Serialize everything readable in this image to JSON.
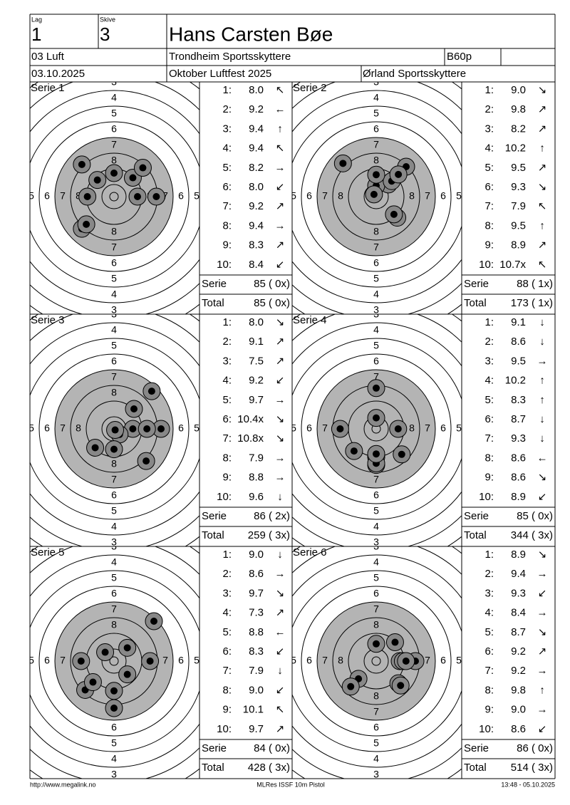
{
  "header": {
    "lag_label": "Lag",
    "lag": "1",
    "skive_label": "Skive",
    "skive": "3",
    "name": "Hans Carsten Bøe",
    "class": "03 Luft",
    "club": "Trondheim Sportsskyttere",
    "code": "B60p",
    "date": "03.10.2025",
    "event": "Oktober Luftfest 2025",
    "organizer": "Ørland Sportsskyttere"
  },
  "target": {
    "ring_labels": [
      3,
      4,
      5,
      6,
      7,
      8
    ]
  },
  "labels": {
    "shot_numbers": [
      "1:",
      "2:",
      "3:",
      "4:",
      "5:",
      "6:",
      "7:",
      "8:",
      "9:",
      "10:"
    ],
    "serie": "Serie",
    "total": "Total"
  },
  "series": [
    {
      "title": "Serie 1",
      "shots": [
        {
          "score": "8.0",
          "dir": "nw"
        },
        {
          "score": "9.2",
          "dir": "w"
        },
        {
          "score": "9.4",
          "dir": "n"
        },
        {
          "score": "9.4",
          "dir": "nw"
        },
        {
          "score": "8.2",
          "dir": "e"
        },
        {
          "score": "8.0",
          "dir": "sw"
        },
        {
          "score": "9.2",
          "dir": "ne"
        },
        {
          "score": "9.4",
          "dir": "e"
        },
        {
          "score": "8.3",
          "dir": "ne"
        },
        {
          "score": "8.4",
          "dir": "sw"
        }
      ],
      "serie_sum": "85 ( 0x)",
      "total": "85 ( 0x)"
    },
    {
      "title": "Serie 2",
      "shots": [
        {
          "score": "9.0",
          "dir": "se"
        },
        {
          "score": "9.8",
          "dir": "ne"
        },
        {
          "score": "8.2",
          "dir": "ne"
        },
        {
          "score": "10.2",
          "dir": "n"
        },
        {
          "score": "9.5",
          "dir": "ne"
        },
        {
          "score": "9.3",
          "dir": "se"
        },
        {
          "score": "7.9",
          "dir": "nw"
        },
        {
          "score": "9.5",
          "dir": "n"
        },
        {
          "score": "8.9",
          "dir": "ne"
        },
        {
          "score": "10.7x",
          "dir": "nw"
        }
      ],
      "serie_sum": "88 ( 1x)",
      "total": "173 ( 1x)"
    },
    {
      "title": "Serie 3",
      "shots": [
        {
          "score": "8.0",
          "dir": "se"
        },
        {
          "score": "9.1",
          "dir": "ne"
        },
        {
          "score": "7.5",
          "dir": "ne"
        },
        {
          "score": "9.2",
          "dir": "sw"
        },
        {
          "score": "9.7",
          "dir": "e"
        },
        {
          "score": "10.4x",
          "dir": "se"
        },
        {
          "score": "10.8x",
          "dir": "se"
        },
        {
          "score": "7.9",
          "dir": "e"
        },
        {
          "score": "8.8",
          "dir": "e"
        },
        {
          "score": "9.6",
          "dir": "s"
        }
      ],
      "serie_sum": "86 ( 2x)",
      "total": "259 ( 3x)"
    },
    {
      "title": "Serie 4",
      "shots": [
        {
          "score": "9.1",
          "dir": "s"
        },
        {
          "score": "8.6",
          "dir": "s"
        },
        {
          "score": "9.5",
          "dir": "e"
        },
        {
          "score": "10.2",
          "dir": "n"
        },
        {
          "score": "8.3",
          "dir": "n"
        },
        {
          "score": "8.7",
          "dir": "s"
        },
        {
          "score": "9.3",
          "dir": "s"
        },
        {
          "score": "8.6",
          "dir": "w"
        },
        {
          "score": "8.6",
          "dir": "se"
        },
        {
          "score": "8.9",
          "dir": "sw"
        }
      ],
      "serie_sum": "85 ( 0x)",
      "total": "344 ( 3x)"
    },
    {
      "title": "Serie 5",
      "shots": [
        {
          "score": "9.0",
          "dir": "s"
        },
        {
          "score": "8.6",
          "dir": "e"
        },
        {
          "score": "9.7",
          "dir": "se"
        },
        {
          "score": "7.3",
          "dir": "ne"
        },
        {
          "score": "8.8",
          "dir": "w"
        },
        {
          "score": "8.3",
          "dir": "sw"
        },
        {
          "score": "7.9",
          "dir": "s"
        },
        {
          "score": "9.0",
          "dir": "sw"
        },
        {
          "score": "10.1",
          "dir": "nw"
        },
        {
          "score": "9.7",
          "dir": "ne"
        }
      ],
      "serie_sum": "84 ( 0x)",
      "total": "428 ( 3x)"
    },
    {
      "title": "Serie 6",
      "shots": [
        {
          "score": "8.9",
          "dir": "se"
        },
        {
          "score": "9.4",
          "dir": "e"
        },
        {
          "score": "9.3",
          "dir": "sw"
        },
        {
          "score": "8.4",
          "dir": "e"
        },
        {
          "score": "8.7",
          "dir": "se"
        },
        {
          "score": "9.2",
          "dir": "ne"
        },
        {
          "score": "9.2",
          "dir": "e"
        },
        {
          "score": "9.8",
          "dir": "n"
        },
        {
          "score": "9.0",
          "dir": "e"
        },
        {
          "score": "8.6",
          "dir": "sw"
        }
      ],
      "serie_sum": "86 ( 0x)",
      "total": "514 ( 3x)"
    }
  ],
  "footer": {
    "left": "http://www.megalink.no",
    "center": "MLRes ISSF 10m Pistol",
    "right": "13:48 - 05.10.2025"
  }
}
